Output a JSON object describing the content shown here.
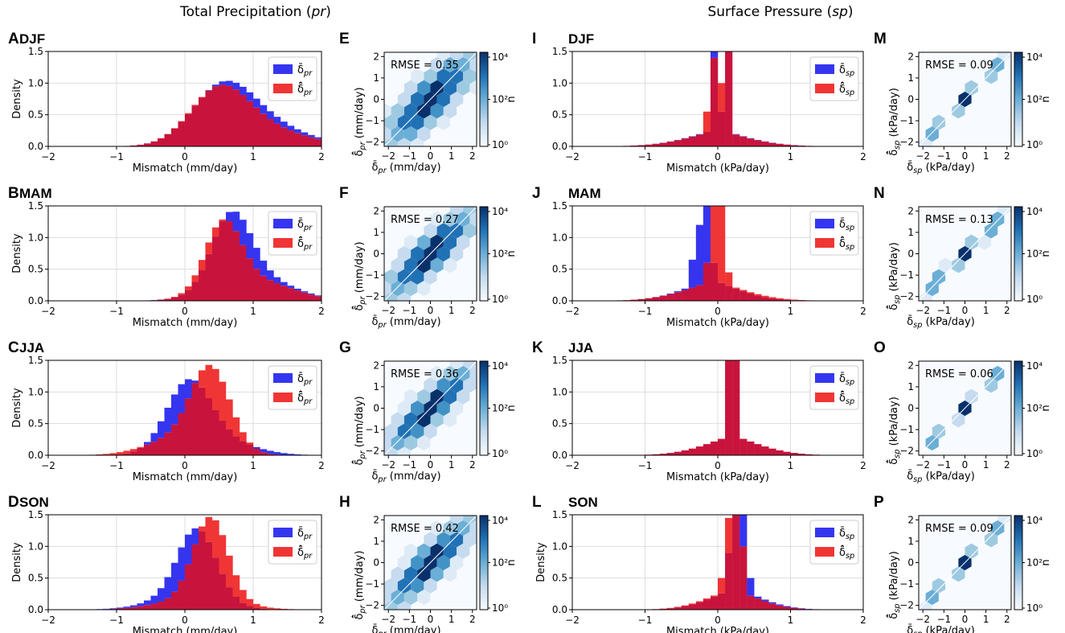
{
  "column_titles": {
    "precipitation": {
      "text": "Total Precipitation (",
      "var": "pr",
      "close": ")"
    },
    "pressure": {
      "text": "Surface Pressure (",
      "var": "sp",
      "close": ")"
    }
  },
  "colors": {
    "blue_bar": "#3535f0",
    "red_bar": "#f03535",
    "overlap": "#c8143c",
    "hex_dark": "#08306b",
    "hex_light": "#f7fbff"
  },
  "chart_data": [
    {
      "type": "bar",
      "panel": "A",
      "season": "DJF",
      "variable": "pr",
      "xlabel": "Mismatch (mm/day)",
      "ylabel": "Density",
      "xlim": [
        -2,
        2
      ],
      "ylim": [
        0,
        1.5
      ],
      "xticks": [
        "−2",
        "−1",
        "0",
        "1",
        "2"
      ],
      "yticks": [
        "0.0",
        "0.5",
        "1.0",
        "1.5"
      ],
      "legend": [
        "δ̄pr",
        "δ̄̂pr"
      ],
      "series": [
        {
          "name": "δ̄pr",
          "color": "blue",
          "shape": "peaks",
          "peaks": [
            {
              "mu": 0.55,
              "sigma": 0.45,
              "h": 0.86
            },
            {
              "mu": 1.2,
              "sigma": 0.6,
              "h": 0.3
            }
          ]
        },
        {
          "name": "δ̄̂pr",
          "color": "red",
          "shape": "peaks",
          "peaks": [
            {
              "mu": 0.5,
              "sigma": 0.43,
              "h": 0.84
            },
            {
              "mu": 1.2,
              "sigma": 0.6,
              "h": 0.25
            }
          ]
        }
      ]
    },
    {
      "type": "heatmap",
      "panel": "E",
      "variable": "pr",
      "rmse": "RMSE = 0.35",
      "xlabel": "δ̄pr (mm/day)",
      "ylabel": "δ̄̂pr (mm/day)",
      "xlim": [
        -2,
        2
      ],
      "ylim": [
        -2,
        2
      ],
      "ticks": [
        "−2",
        "−1",
        "0",
        "1",
        "2"
      ],
      "colorbar_label": "n",
      "colorbar_ticks": [
        "10⁴",
        "10²",
        "10⁰"
      ],
      "spread": 0.9
    },
    {
      "type": "bar",
      "panel": "I",
      "season": "DJF",
      "variable": "sp",
      "xlabel": "Mismatch (kPa/day)",
      "ylabel": "",
      "xlim": [
        -2,
        2
      ],
      "ylim": [
        0,
        1.5
      ],
      "xticks": [
        "−2",
        "−1",
        "0",
        "1",
        "2"
      ],
      "yticks": [
        "0.0",
        "0.5",
        "1.0",
        "1.5"
      ],
      "legend": [
        "δ̄sp",
        "δ̄̂sp"
      ],
      "series": [
        {
          "name": "δ̄sp",
          "color": "blue",
          "shape": "sharp",
          "base": [
            {
              "mu": 0.0,
              "sigma": 0.55,
              "h": 0.28
            }
          ],
          "bars": {
            "-0.05": 1.6,
            "0.05": 0.55,
            "0.15": 1.6
          }
        },
        {
          "name": "δ̄̂sp",
          "color": "red",
          "shape": "sharp",
          "base": [
            {
              "mu": 0.0,
              "sigma": 0.55,
              "h": 0.27
            }
          ],
          "bars": {
            "-0.15": 0.55,
            "-0.05": 1.4,
            "0.05": 1.0,
            "0.15": 1.6
          }
        }
      ]
    },
    {
      "type": "heatmap",
      "panel": "M",
      "variable": "sp",
      "rmse": "RMSE = 0.09",
      "xlabel": "δ̄sp (kPa/day)",
      "ylabel": "δ̄̂sp (kPa/day)",
      "xlim": [
        -2,
        2
      ],
      "ylim": [
        -2,
        2
      ],
      "ticks": [
        "−2",
        "−1",
        "0",
        "1",
        "2"
      ],
      "colorbar_label": "n",
      "colorbar_ticks": [
        "10⁴",
        "10²",
        "10⁰"
      ],
      "spread": 0.18
    },
    {
      "type": "bar",
      "panel": "B",
      "season": "MAM",
      "variable": "pr",
      "xlabel": "Mismatch (mm/day)",
      "ylabel": "Density",
      "xlim": [
        -2,
        2
      ],
      "ylim": [
        0,
        1.5
      ],
      "xticks": [
        "−2",
        "−1",
        "0",
        "1",
        "2"
      ],
      "yticks": [
        "0.0",
        "0.5",
        "1.0",
        "1.5"
      ],
      "legend": [
        "δ̄pr",
        "δ̄̂pr"
      ],
      "series": [
        {
          "name": "δ̄pr",
          "color": "blue",
          "shape": "peaks",
          "peaks": [
            {
              "mu": 0.68,
              "sigma": 0.28,
              "h": 1.1
            },
            {
              "mu": 1.0,
              "sigma": 0.55,
              "h": 0.38
            }
          ]
        },
        {
          "name": "δ̄̂pr",
          "color": "red",
          "shape": "peaks",
          "peaks": [
            {
              "mu": 0.56,
              "sigma": 0.26,
              "h": 1.05
            },
            {
              "mu": 1.0,
              "sigma": 0.55,
              "h": 0.33
            }
          ]
        }
      ]
    },
    {
      "type": "heatmap",
      "panel": "F",
      "variable": "pr",
      "rmse": "RMSE = 0.27",
      "xlabel": "δ̄pr (mm/day)",
      "ylabel": "δ̄̂pr (mm/day)",
      "xlim": [
        -2,
        2
      ],
      "ylim": [
        -2,
        2
      ],
      "ticks": [
        "−2",
        "−1",
        "0",
        "1",
        "2"
      ],
      "colorbar_label": "n",
      "colorbar_ticks": [
        "10⁴",
        "10²",
        "10⁰"
      ],
      "spread": 0.8
    },
    {
      "type": "bar",
      "panel": "J",
      "season": "MAM",
      "variable": "sp",
      "xlabel": "Mismatch (kPa/day)",
      "ylabel": "",
      "xlim": [
        -2,
        2
      ],
      "ylim": [
        0,
        1.5
      ],
      "xticks": [
        "−2",
        "−1",
        "0",
        "1",
        "2"
      ],
      "yticks": [
        "0.0",
        "0.5",
        "1.0",
        "1.5"
      ],
      "legend": [
        "δ̄sp",
        "δ̄̂sp"
      ],
      "series": [
        {
          "name": "δ̄sp",
          "color": "blue",
          "shape": "sharp",
          "base": [
            {
              "mu": -0.1,
              "sigma": 0.5,
              "h": 0.35
            }
          ],
          "bars": {
            "-0.35": 0.65,
            "-0.25": 1.2,
            "-0.15": 1.65,
            "-0.05": 0.6
          }
        },
        {
          "name": "δ̄̂sp",
          "color": "red",
          "shape": "sharp",
          "base": [
            {
              "mu": -0.05,
              "sigma": 0.55,
              "h": 0.33
            }
          ],
          "bars": {
            "-0.15": 0.6,
            "-0.05": 1.6,
            "0.05": 1.6,
            "0.15": 0.45
          }
        }
      ]
    },
    {
      "type": "heatmap",
      "panel": "N",
      "variable": "sp",
      "rmse": "RMSE = 0.13",
      "xlabel": "δ̄sp (kPa/day)",
      "ylabel": "δ̄̂sp (kPa/day)",
      "xlim": [
        -2,
        2
      ],
      "ylim": [
        -2,
        2
      ],
      "ticks": [
        "−2",
        "−1",
        "0",
        "1",
        "2"
      ],
      "colorbar_label": "n",
      "colorbar_ticks": [
        "10⁴",
        "10²",
        "10⁰"
      ],
      "spread": 0.2
    },
    {
      "type": "bar",
      "panel": "C",
      "season": "JJA",
      "variable": "pr",
      "xlabel": "Mismatch (mm/day)",
      "ylabel": "Density",
      "xlim": [
        -2,
        2
      ],
      "ylim": [
        0,
        1.5
      ],
      "xticks": [
        "−2",
        "−1",
        "0",
        "1",
        "2"
      ],
      "yticks": [
        "0.0",
        "0.5",
        "1.0",
        "1.5"
      ],
      "legend": [
        "δ̄pr",
        "δ̄̂pr"
      ],
      "series": [
        {
          "name": "δ̄pr",
          "color": "blue",
          "shape": "peaks",
          "peaks": [
            {
              "mu": 0.05,
              "sigma": 0.32,
              "h": 1.02
            },
            {
              "mu": 0.45,
              "sigma": 0.5,
              "h": 0.25
            }
          ]
        },
        {
          "name": "δ̄̂pr",
          "color": "red",
          "shape": "peaks",
          "peaks": [
            {
              "mu": 0.38,
              "sigma": 0.28,
              "h": 1.2
            },
            {
              "mu": 0.0,
              "sigma": 0.5,
              "h": 0.3
            }
          ]
        }
      ]
    },
    {
      "type": "heatmap",
      "panel": "G",
      "variable": "pr",
      "rmse": "RMSE = 0.36",
      "xlabel": "δ̄pr (mm/day)",
      "ylabel": "δ̄̂pr (mm/day)",
      "xlim": [
        -2,
        2
      ],
      "ylim": [
        -2,
        2
      ],
      "ticks": [
        "−2",
        "−1",
        "0",
        "1",
        "2"
      ],
      "colorbar_label": "n",
      "colorbar_ticks": [
        "10⁴",
        "10²",
        "10⁰"
      ],
      "spread": 0.7
    },
    {
      "type": "bar",
      "panel": "K",
      "season": "JJA",
      "variable": "sp",
      "xlabel": "Mismatch (kPa/day)",
      "ylabel": "",
      "xlim": [
        -2,
        2
      ],
      "ylim": [
        0,
        1.5
      ],
      "xticks": [
        "−2",
        "−1",
        "0",
        "1",
        "2"
      ],
      "yticks": [
        "0.0",
        "0.5",
        "1.0",
        "1.5"
      ],
      "legend": [
        "δ̄sp",
        "δ̄̂sp"
      ],
      "series": [
        {
          "name": "δ̄sp",
          "color": "blue",
          "shape": "sharp",
          "base": [
            {
              "mu": 0.2,
              "sigma": 0.5,
              "h": 0.32
            }
          ],
          "bars": {
            "0.15": 1.6,
            "0.25": 1.6
          }
        },
        {
          "name": "δ̄̂sp",
          "color": "red",
          "shape": "sharp",
          "base": [
            {
              "mu": 0.2,
              "sigma": 0.5,
              "h": 0.32
            }
          ],
          "bars": {
            "0.15": 1.6,
            "0.25": 1.6
          }
        }
      ]
    },
    {
      "type": "heatmap",
      "panel": "O",
      "variable": "sp",
      "rmse": "RMSE = 0.06",
      "xlabel": "δ̄sp (kPa/day)",
      "ylabel": "δ̄̂sp (kPa/day)",
      "xlim": [
        -2,
        2
      ],
      "ylim": [
        -2,
        2
      ],
      "ticks": [
        "−2",
        "−1",
        "0",
        "1",
        "2"
      ],
      "colorbar_label": "n",
      "colorbar_ticks": [
        "10⁴",
        "10²",
        "10⁰"
      ],
      "spread": 0.15
    },
    {
      "type": "bar",
      "panel": "D",
      "season": "SON",
      "variable": "pr",
      "xlabel": "Mismatch (mm/day)",
      "ylabel": "Density",
      "xlim": [
        -2,
        2
      ],
      "ylim": [
        0,
        1.5
      ],
      "xticks": [
        "−2",
        "−1",
        "0",
        "1",
        "2"
      ],
      "yticks": [
        "0.0",
        "0.5",
        "1.0",
        "1.5"
      ],
      "legend": [
        "δ̄pr",
        "δ̄̂pr"
      ],
      "series": [
        {
          "name": "δ̄pr",
          "color": "blue",
          "shape": "peaks",
          "peaks": [
            {
              "mu": 0.18,
              "sigma": 0.28,
              "h": 1.1
            },
            {
              "mu": 0.0,
              "sigma": 0.5,
              "h": 0.2
            }
          ]
        },
        {
          "name": "δ̄̂pr",
          "color": "red",
          "shape": "peaks",
          "peaks": [
            {
              "mu": 0.38,
              "sigma": 0.25,
              "h": 1.3
            },
            {
              "mu": 0.2,
              "sigma": 0.55,
              "h": 0.18
            }
          ]
        }
      ]
    },
    {
      "type": "heatmap",
      "panel": "H",
      "variable": "pr",
      "rmse": "RMSE = 0.42",
      "xlabel": "δ̄pr (mm/day)",
      "ylabel": "δ̄̂pr (mm/day)",
      "xlim": [
        -2,
        2
      ],
      "ylim": [
        -2,
        2
      ],
      "ticks": [
        "−2",
        "−1",
        "0",
        "1",
        "2"
      ],
      "colorbar_label": "n",
      "colorbar_ticks": [
        "10⁴",
        "10²",
        "10⁰"
      ],
      "spread": 0.75
    },
    {
      "type": "bar",
      "panel": "L",
      "season": "SON",
      "variable": "sp",
      "xlabel": "Mismatch (kPa/day)",
      "ylabel": "Density",
      "xlim": [
        -2,
        2
      ],
      "ylim": [
        0,
        1.5
      ],
      "xticks": [
        "−2",
        "−1",
        "0",
        "1",
        "2"
      ],
      "yticks": [
        "0.0",
        "0.5",
        "1.0",
        "1.5"
      ],
      "legend": [
        "δ̄sp",
        "δ̄̂sp"
      ],
      "series": [
        {
          "name": "δ̄sp",
          "color": "blue",
          "shape": "sharp",
          "base": [
            {
              "mu": 0.25,
              "sigma": 0.45,
              "h": 0.35
            }
          ],
          "bars": {
            "0.15": 0.9,
            "0.25": 1.6,
            "0.35": 1.6,
            "0.45": 0.5
          }
        },
        {
          "name": "δ̄̂sp",
          "color": "red",
          "shape": "sharp",
          "base": [
            {
              "mu": 0.2,
              "sigma": 0.45,
              "h": 0.34
            }
          ],
          "bars": {
            "0.05": 0.5,
            "0.15": 1.45,
            "0.25": 1.6,
            "0.35": 1.0
          }
        }
      ]
    },
    {
      "type": "heatmap",
      "panel": "P",
      "variable": "sp",
      "rmse": "RMSE = 0.09",
      "xlabel": "δ̄sp (kPa/day)",
      "ylabel": "δ̄̂sp (kPa/day)",
      "xlim": [
        -2,
        2
      ],
      "ylim": [
        -2,
        2
      ],
      "ticks": [
        "−2",
        "−1",
        "0",
        "1",
        "2"
      ],
      "colorbar_label": "n",
      "colorbar_ticks": [
        "10⁴",
        "10²",
        "10⁰"
      ],
      "spread": 0.18
    }
  ]
}
